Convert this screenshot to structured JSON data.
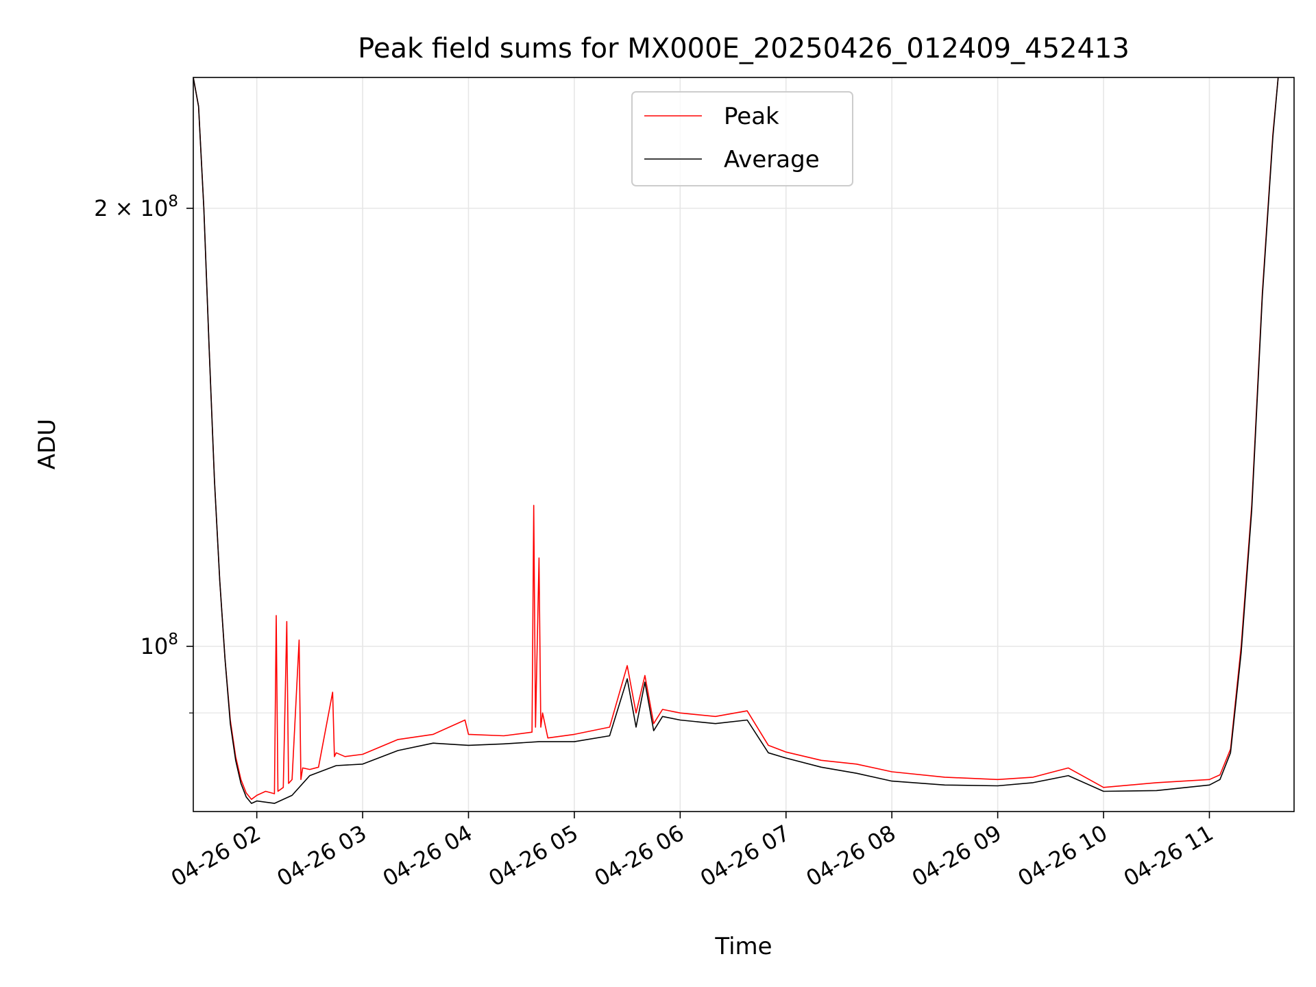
{
  "chart_data": {
    "type": "line",
    "title": "Peak field sums for MX000E_20250426_012409_452413",
    "xlabel": "Time",
    "ylabel": "ADU",
    "yscale": "log",
    "xlim": [
      "2025-04-26 01:24",
      "2025-04-26 11:48"
    ],
    "ylim": [
      77000000,
      246000000
    ],
    "x_tick_labels": [
      "04-26 02",
      "04-26 03",
      "04-26 04",
      "04-26 05",
      "04-26 06",
      "04-26 07",
      "04-26 08",
      "04-26 09",
      "04-26 10",
      "04-26 11"
    ],
    "x_tick_times": [
      "2025-04-26 02:00",
      "2025-04-26 03:00",
      "2025-04-26 04:00",
      "2025-04-26 05:00",
      "2025-04-26 06:00",
      "2025-04-26 07:00",
      "2025-04-26 08:00",
      "2025-04-26 09:00",
      "2025-04-26 10:00",
      "2025-04-26 11:00"
    ],
    "y_major_ticks": [
      {
        "value": 100000000,
        "label_base": "10",
        "label_exp": "8"
      },
      {
        "value": 200000000,
        "label_base": "2 × 10",
        "label_exp": "8"
      }
    ],
    "y_minor_ticks": [
      90000000
    ],
    "grid": true,
    "legend": {
      "position": "top-center"
    },
    "series": [
      {
        "name": "Peak",
        "color": "#ff0000",
        "x": [
          "2025-04-26 01:24",
          "2025-04-26 01:27",
          "2025-04-26 01:30",
          "2025-04-26 01:33",
          "2025-04-26 01:36",
          "2025-04-26 01:39",
          "2025-04-26 01:42",
          "2025-04-26 01:45",
          "2025-04-26 01:48",
          "2025-04-26 01:51",
          "2025-04-26 01:54",
          "2025-04-26 01:57",
          "2025-04-26 02:00",
          "2025-04-26 02:05",
          "2025-04-26 02:10",
          "2025-04-26 02:11",
          "2025-04-26 02:12",
          "2025-04-26 02:15",
          "2025-04-26 02:17",
          "2025-04-26 02:18",
          "2025-04-26 02:20",
          "2025-04-26 02:24",
          "2025-04-26 02:25",
          "2025-04-26 02:26",
          "2025-04-26 02:30",
          "2025-04-26 02:35",
          "2025-04-26 02:43",
          "2025-04-26 02:44",
          "2025-04-26 02:45",
          "2025-04-26 02:50",
          "2025-04-26 03:00",
          "2025-04-26 03:20",
          "2025-04-26 03:40",
          "2025-04-26 03:58",
          "2025-04-26 04:00",
          "2025-04-26 04:20",
          "2025-04-26 04:36",
          "2025-04-26 04:37",
          "2025-04-26 04:38",
          "2025-04-26 04:40",
          "2025-04-26 04:41",
          "2025-04-26 04:42",
          "2025-04-26 04:45",
          "2025-04-26 05:00",
          "2025-04-26 05:20",
          "2025-04-26 05:30",
          "2025-04-26 05:35",
          "2025-04-26 05:40",
          "2025-04-26 05:45",
          "2025-04-26 05:50",
          "2025-04-26 06:00",
          "2025-04-26 06:20",
          "2025-04-26 06:38",
          "2025-04-26 06:50",
          "2025-04-26 07:00",
          "2025-04-26 07:20",
          "2025-04-26 07:40",
          "2025-04-26 08:00",
          "2025-04-26 08:30",
          "2025-04-26 09:00",
          "2025-04-26 09:20",
          "2025-04-26 09:40",
          "2025-04-26 10:00",
          "2025-04-26 10:30",
          "2025-04-26 11:00",
          "2025-04-26 11:06",
          "2025-04-26 11:12",
          "2025-04-26 11:18",
          "2025-04-26 11:24",
          "2025-04-26 11:30",
          "2025-04-26 11:36",
          "2025-04-26 11:39"
        ],
        "y": [
          246000000,
          235000000,
          200000000,
          160000000,
          130000000,
          111000000,
          98000000,
          89000000,
          84000000,
          81000000,
          79300000,
          78500000,
          79000000,
          79500000,
          79200000,
          105000000,
          79500000,
          80000000,
          104000000,
          80500000,
          81000000,
          101000000,
          81000000,
          82500000,
          82300000,
          82600000,
          93000000,
          84000000,
          84500000,
          84000000,
          84300000,
          86300000,
          87000000,
          89000000,
          87000000,
          86800000,
          87300000,
          125000000,
          88000000,
          115000000,
          88000000,
          90000000,
          86500000,
          87000000,
          88000000,
          97000000,
          90000000,
          95500000,
          88500000,
          90500000,
          90000000,
          89500000,
          90300000,
          85500000,
          84600000,
          83500000,
          83000000,
          82000000,
          81300000,
          81000000,
          81300000,
          82500000,
          80000000,
          80600000,
          81000000,
          81600000,
          85000000,
          100000000,
          125000000,
          175000000,
          225000000,
          246000000
        ]
      },
      {
        "name": "Average",
        "color": "#000000",
        "x": [
          "2025-04-26 01:24",
          "2025-04-26 01:27",
          "2025-04-26 01:30",
          "2025-04-26 01:33",
          "2025-04-26 01:36",
          "2025-04-26 01:39",
          "2025-04-26 01:42",
          "2025-04-26 01:45",
          "2025-04-26 01:48",
          "2025-04-26 01:51",
          "2025-04-26 01:54",
          "2025-04-26 01:57",
          "2025-04-26 02:00",
          "2025-04-26 02:10",
          "2025-04-26 02:20",
          "2025-04-26 02:30",
          "2025-04-26 02:45",
          "2025-04-26 03:00",
          "2025-04-26 03:20",
          "2025-04-26 03:40",
          "2025-04-26 04:00",
          "2025-04-26 04:20",
          "2025-04-26 04:40",
          "2025-04-26 05:00",
          "2025-04-26 05:20",
          "2025-04-26 05:30",
          "2025-04-26 05:35",
          "2025-04-26 05:40",
          "2025-04-26 05:45",
          "2025-04-26 05:50",
          "2025-04-26 06:00",
          "2025-04-26 06:20",
          "2025-04-26 06:38",
          "2025-04-26 06:50",
          "2025-04-26 07:00",
          "2025-04-26 07:20",
          "2025-04-26 07:40",
          "2025-04-26 08:00",
          "2025-04-26 08:30",
          "2025-04-26 09:00",
          "2025-04-26 09:20",
          "2025-04-26 09:40",
          "2025-04-26 10:00",
          "2025-04-26 10:30",
          "2025-04-26 11:00",
          "2025-04-26 11:06",
          "2025-04-26 11:12",
          "2025-04-26 11:18",
          "2025-04-26 11:24",
          "2025-04-26 11:30",
          "2025-04-26 11:36",
          "2025-04-26 11:39"
        ],
        "y": [
          246000000,
          235000000,
          200000000,
          160000000,
          130000000,
          111000000,
          98000000,
          88500000,
          83500000,
          80500000,
          78800000,
          78000000,
          78300000,
          78000000,
          79000000,
          81500000,
          82800000,
          83000000,
          84800000,
          85800000,
          85500000,
          85700000,
          86000000,
          86000000,
          86800000,
          95000000,
          88000000,
          94500000,
          87500000,
          89500000,
          89000000,
          88500000,
          89000000,
          84500000,
          83800000,
          82600000,
          81800000,
          80800000,
          80300000,
          80200000,
          80600000,
          81500000,
          79500000,
          79600000,
          80300000,
          81000000,
          84500000,
          99000000,
          124000000,
          174000000,
          224000000,
          246000000
        ]
      }
    ]
  }
}
